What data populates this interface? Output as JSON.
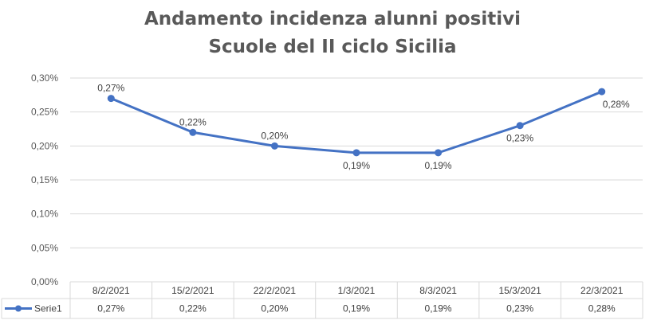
{
  "chart_data": {
    "type": "line",
    "title_lines": [
      "Andamento incidenza alunni positivi",
      "Scuole del II ciclo Sicilia"
    ],
    "categories": [
      "8/2/2021",
      "15/2/2021",
      "22/2/2021",
      "1/3/2021",
      "8/3/2021",
      "15/3/2021",
      "22/3/2021"
    ],
    "series": [
      {
        "name": "Serie1",
        "values": [
          0.27,
          0.22,
          0.2,
          0.19,
          0.19,
          0.23,
          0.28
        ],
        "labels": [
          "0,27%",
          "0,22%",
          "0,20%",
          "0,19%",
          "0,19%",
          "0,23%",
          "0,28%"
        ],
        "color": "#4472C4"
      }
    ],
    "y_ticks": [
      0,
      0.05,
      0.1,
      0.15,
      0.2,
      0.25,
      0.3
    ],
    "y_tick_labels": [
      "0,00%",
      "0,05%",
      "0,10%",
      "0,15%",
      "0,20%",
      "0,25%",
      "0,30%"
    ],
    "ylim": [
      0,
      0.3
    ],
    "y_unit": "%",
    "grid": true,
    "legend": "data-table",
    "colors": {
      "gridline": "#d9d9d9",
      "axis_text": "#595959",
      "table_border": "#d9d9d9"
    }
  }
}
